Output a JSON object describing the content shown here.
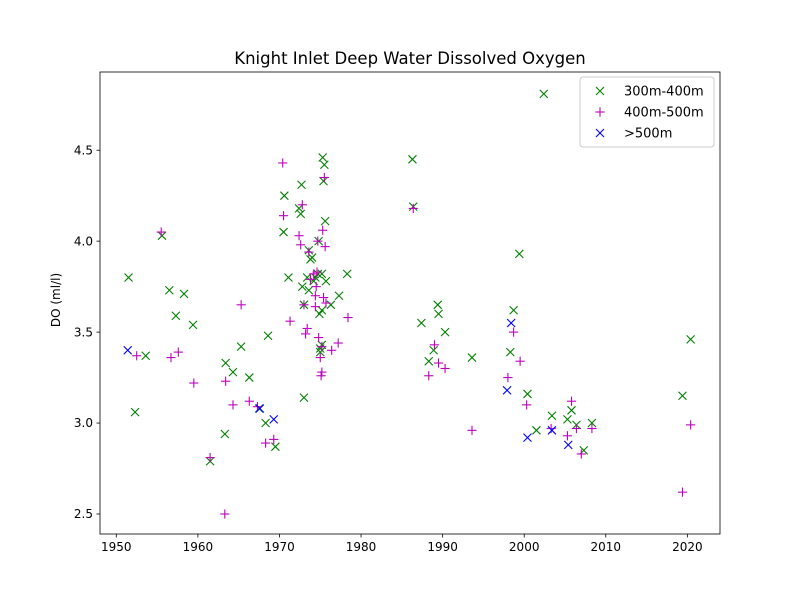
{
  "chart_data": {
    "type": "scatter",
    "title": "Knight Inlet Deep Water Dissolved Oxygen",
    "xlabel": "",
    "ylabel": "DO (ml/l)",
    "xlim": [
      1948,
      2024
    ],
    "ylim": [
      2.39,
      4.93
    ],
    "xticks": [
      1950,
      1960,
      1970,
      1980,
      1990,
      2000,
      2010,
      2020
    ],
    "xtick_labels": [
      "1950",
      "1960",
      "1970",
      "1980",
      "1990",
      "2000",
      "2010",
      "2020"
    ],
    "yticks": [
      2.5,
      3.0,
      3.5,
      4.0,
      4.5
    ],
    "ytick_labels": [
      "2.5",
      "3.0",
      "3.5",
      "4.0",
      "4.5"
    ],
    "grid": false,
    "legend_position": "top-right",
    "series": [
      {
        "name": "300m-400m",
        "marker": "x",
        "color": "#008000",
        "points": [
          [
            1951.5,
            3.8
          ],
          [
            1952.3,
            3.06
          ],
          [
            1953.6,
            3.37
          ],
          [
            1955.6,
            4.03
          ],
          [
            1956.5,
            3.73
          ],
          [
            1957.3,
            3.59
          ],
          [
            1958.3,
            3.71
          ],
          [
            1959.4,
            3.54
          ],
          [
            1961.5,
            2.79
          ],
          [
            1963.3,
            2.94
          ],
          [
            1963.4,
            3.33
          ],
          [
            1964.3,
            3.28
          ],
          [
            1965.3,
            3.42
          ],
          [
            1966.3,
            3.25
          ],
          [
            1967.5,
            3.08
          ],
          [
            1968.3,
            3.0
          ],
          [
            1968.6,
            3.48
          ],
          [
            1969.5,
            2.87
          ],
          [
            1970.5,
            4.05
          ],
          [
            1970.6,
            4.25
          ],
          [
            1971.1,
            3.8
          ],
          [
            1972.4,
            4.18
          ],
          [
            1972.6,
            4.15
          ],
          [
            1972.7,
            4.31
          ],
          [
            1972.8,
            3.75
          ],
          [
            1973.0,
            3.14
          ],
          [
            1973.0,
            3.65
          ],
          [
            1973.4,
            3.8
          ],
          [
            1973.6,
            3.73
          ],
          [
            1973.6,
            3.95
          ],
          [
            1973.8,
            3.9
          ],
          [
            1974.0,
            3.91
          ],
          [
            1974.2,
            3.78
          ],
          [
            1974.4,
            3.8
          ],
          [
            1974.7,
            3.82
          ],
          [
            1974.8,
            4.0
          ],
          [
            1974.9,
            3.6
          ],
          [
            1975.0,
            3.41
          ],
          [
            1975.0,
            3.39
          ],
          [
            1975.2,
            3.82
          ],
          [
            1975.2,
            3.62
          ],
          [
            1975.2,
            3.43
          ],
          [
            1975.3,
            4.46
          ],
          [
            1975.4,
            4.33
          ],
          [
            1975.5,
            4.42
          ],
          [
            1975.6,
            4.11
          ],
          [
            1975.7,
            3.78
          ],
          [
            1976.3,
            3.65
          ],
          [
            1977.3,
            3.7
          ],
          [
            1978.3,
            3.82
          ],
          [
            1986.3,
            4.45
          ],
          [
            1986.4,
            4.19
          ],
          [
            1987.4,
            3.55
          ],
          [
            1988.3,
            3.34
          ],
          [
            1988.9,
            3.4
          ],
          [
            1989.4,
            3.65
          ],
          [
            1989.5,
            3.6
          ],
          [
            1990.3,
            3.5
          ],
          [
            1993.6,
            3.36
          ],
          [
            1998.3,
            3.39
          ],
          [
            1998.7,
            3.62
          ],
          [
            1999.4,
            3.93
          ],
          [
            2000.4,
            3.16
          ],
          [
            2001.5,
            2.96
          ],
          [
            2002.4,
            4.81
          ],
          [
            2003.4,
            3.04
          ],
          [
            2005.3,
            3.02
          ],
          [
            2005.8,
            3.07
          ],
          [
            2006.4,
            2.99
          ],
          [
            2007.3,
            2.85
          ],
          [
            2008.3,
            3.0
          ],
          [
            2019.4,
            3.15
          ],
          [
            2020.4,
            3.46
          ]
        ]
      },
      {
        "name": "400m-500m",
        "marker": "+",
        "color": "#bf00bf",
        "points": [
          [
            1952.5,
            3.37
          ],
          [
            1955.5,
            4.05
          ],
          [
            1956.7,
            3.36
          ],
          [
            1957.6,
            3.39
          ],
          [
            1959.5,
            3.22
          ],
          [
            1961.5,
            2.81
          ],
          [
            1963.3,
            2.5
          ],
          [
            1963.4,
            3.23
          ],
          [
            1964.3,
            3.1
          ],
          [
            1965.3,
            3.65
          ],
          [
            1966.3,
            3.12
          ],
          [
            1967.3,
            3.09
          ],
          [
            1968.3,
            2.89
          ],
          [
            1969.3,
            2.91
          ],
          [
            1970.4,
            4.43
          ],
          [
            1970.5,
            4.14
          ],
          [
            1971.3,
            3.56
          ],
          [
            1972.4,
            4.03
          ],
          [
            1972.6,
            3.98
          ],
          [
            1972.8,
            4.2
          ],
          [
            1973.0,
            3.65
          ],
          [
            1973.2,
            3.49
          ],
          [
            1973.4,
            3.52
          ],
          [
            1973.6,
            3.94
          ],
          [
            1973.8,
            3.79
          ],
          [
            1974.2,
            3.82
          ],
          [
            1974.4,
            3.7
          ],
          [
            1974.4,
            3.64
          ],
          [
            1974.5,
            3.75
          ],
          [
            1974.6,
            3.83
          ],
          [
            1974.7,
            4.0
          ],
          [
            1974.8,
            3.47
          ],
          [
            1975.0,
            3.36
          ],
          [
            1975.1,
            3.26
          ],
          [
            1975.2,
            3.28
          ],
          [
            1975.2,
            3.42
          ],
          [
            1975.3,
            4.06
          ],
          [
            1975.4,
            3.69
          ],
          [
            1975.5,
            4.35
          ],
          [
            1975.6,
            3.97
          ],
          [
            1975.7,
            3.66
          ],
          [
            1976.4,
            3.4
          ],
          [
            1977.2,
            3.44
          ],
          [
            1978.4,
            3.58
          ],
          [
            1986.4,
            4.18
          ],
          [
            1988.3,
            3.26
          ],
          [
            1989.0,
            3.43
          ],
          [
            1989.5,
            3.33
          ],
          [
            1990.3,
            3.3
          ],
          [
            1993.6,
            2.96
          ],
          [
            1998.0,
            3.25
          ],
          [
            1998.7,
            3.5
          ],
          [
            1999.5,
            3.34
          ],
          [
            2000.3,
            3.1
          ],
          [
            2003.3,
            2.97
          ],
          [
            2005.3,
            2.93
          ],
          [
            2005.8,
            3.12
          ],
          [
            2006.4,
            2.97
          ],
          [
            2007.0,
            2.83
          ],
          [
            2008.3,
            2.97
          ],
          [
            2019.4,
            2.62
          ],
          [
            2020.4,
            2.99
          ]
        ]
      },
      {
        "name": ">500m",
        "marker": "x",
        "color": "#0000ff",
        "points": [
          [
            1951.4,
            3.4
          ],
          [
            1967.6,
            3.08
          ],
          [
            1969.3,
            3.02
          ],
          [
            1997.9,
            3.18
          ],
          [
            1998.4,
            3.55
          ],
          [
            2000.4,
            2.92
          ],
          [
            2003.4,
            2.96
          ],
          [
            2005.4,
            2.88
          ]
        ]
      }
    ]
  }
}
